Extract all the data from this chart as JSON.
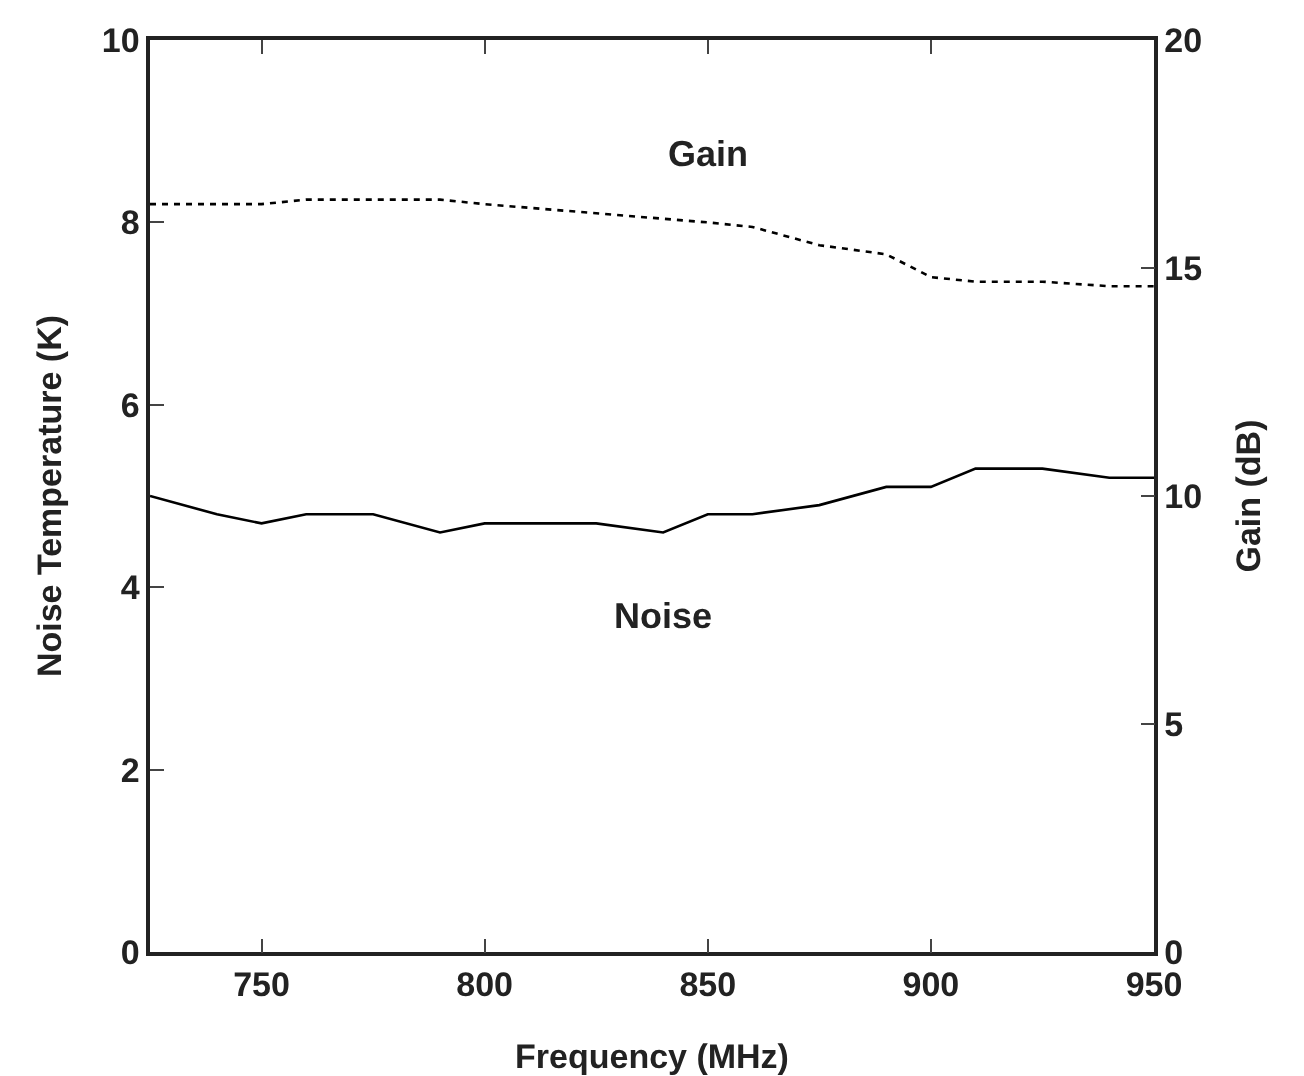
{
  "chart_data": {
    "type": "line",
    "xlabel": "Frequency (MHz)",
    "ylabel": "Noise Temperature (K)",
    "y2label": "Gain (dB)",
    "xlim": [
      725,
      950
    ],
    "xticks": [
      750,
      800,
      850,
      900,
      950
    ],
    "ylim": [
      0,
      10
    ],
    "yticks": [
      0,
      2,
      4,
      6,
      8,
      10
    ],
    "y2lim": [
      0,
      20
    ],
    "y2ticks": [
      0,
      5,
      10,
      15,
      20
    ],
    "grid": false,
    "legend": false,
    "marker": "none",
    "series": [
      {
        "name": "Gain",
        "color": "#000000",
        "axis": "y2",
        "line_style": "dotted",
        "x": [
          725,
          750,
          760,
          790,
          800,
          825,
          850,
          860,
          875,
          890,
          900,
          910,
          925,
          940,
          950
        ],
        "values": [
          16.4,
          16.4,
          16.5,
          16.5,
          16.4,
          16.2,
          16.0,
          15.9,
          15.5,
          15.3,
          14.8,
          14.7,
          14.7,
          14.6,
          14.6
        ]
      },
      {
        "name": "Noise",
        "color": "#000000",
        "line_style": "solid",
        "x": [
          725,
          740,
          750,
          760,
          775,
          790,
          800,
          825,
          840,
          850,
          860,
          875,
          890,
          900,
          910,
          925,
          940,
          950
        ],
        "values": [
          5.0,
          4.8,
          4.7,
          4.8,
          4.8,
          4.6,
          4.7,
          4.7,
          4.6,
          4.8,
          4.8,
          4.9,
          5.1,
          5.1,
          5.3,
          5.3,
          5.2,
          5.2
        ]
      }
    ]
  }
}
